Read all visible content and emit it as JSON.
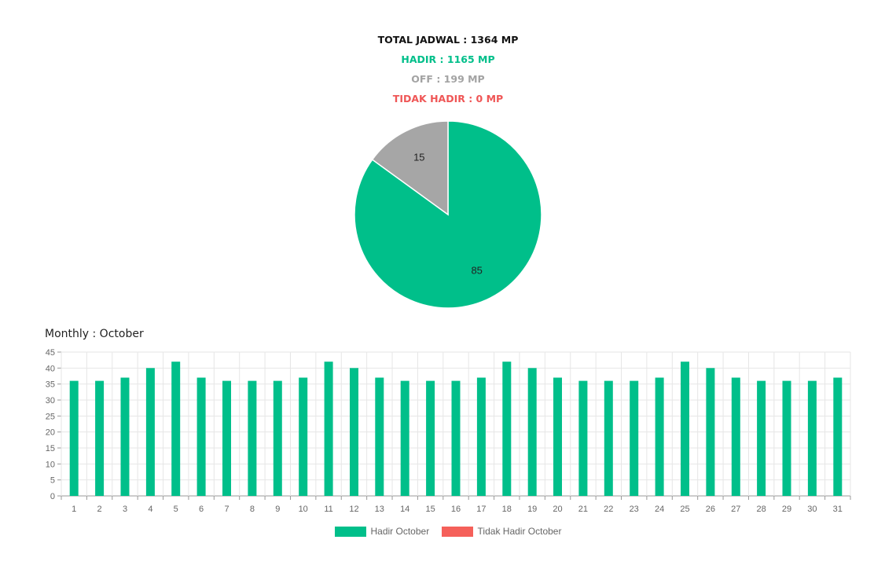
{
  "summary": {
    "total": "TOTAL JADWAL : 1364 MP",
    "hadir": "HADIR : 1165 MP",
    "off": "OFF : 199 MP",
    "tidak_hadir": "TIDAK HADIR : 0 MP"
  },
  "colors": {
    "hadir": "#00bf8a",
    "off": "#a6a6a6",
    "tidak_hadir": "#f5605a",
    "grid": "#e6e6e6",
    "axis": "#999999",
    "tick_text": "#666666"
  },
  "monthly_title": "Monthly : October",
  "chart_data": [
    {
      "type": "pie",
      "slices": [
        {
          "label": "HADIR",
          "value": 85,
          "color": "#00bf8a"
        },
        {
          "label": "OFF",
          "value": 15,
          "color": "#a6a6a6"
        },
        {
          "label": "TIDAK HADIR",
          "value": 0,
          "color": "#f5605a"
        }
      ]
    },
    {
      "type": "bar",
      "title": "Monthly : October",
      "categories": [
        "1",
        "2",
        "3",
        "4",
        "5",
        "6",
        "7",
        "8",
        "9",
        "10",
        "11",
        "12",
        "13",
        "14",
        "15",
        "16",
        "17",
        "18",
        "19",
        "20",
        "21",
        "22",
        "23",
        "24",
        "25",
        "26",
        "27",
        "28",
        "29",
        "30",
        "31"
      ],
      "series": [
        {
          "name": "Hadir October",
          "color": "#00bf8a",
          "values": [
            36,
            36,
            37,
            40,
            42,
            37,
            36,
            36,
            36,
            37,
            42,
            40,
            37,
            36,
            36,
            36,
            37,
            42,
            40,
            37,
            36,
            36,
            36,
            37,
            42,
            40,
            37,
            36,
            36,
            36,
            37
          ]
        },
        {
          "name": "Tidak Hadir October",
          "color": "#f5605a",
          "values": [
            0,
            0,
            0,
            0,
            0,
            0,
            0,
            0,
            0,
            0,
            0,
            0,
            0,
            0,
            0,
            0,
            0,
            0,
            0,
            0,
            0,
            0,
            0,
            0,
            0,
            0,
            0,
            0,
            0,
            0,
            0
          ]
        }
      ],
      "yticks": [
        0,
        5,
        10,
        15,
        20,
        25,
        30,
        35,
        40,
        45
      ],
      "ylim": [
        0,
        45
      ],
      "grid": true,
      "legend": "bottom"
    }
  ]
}
